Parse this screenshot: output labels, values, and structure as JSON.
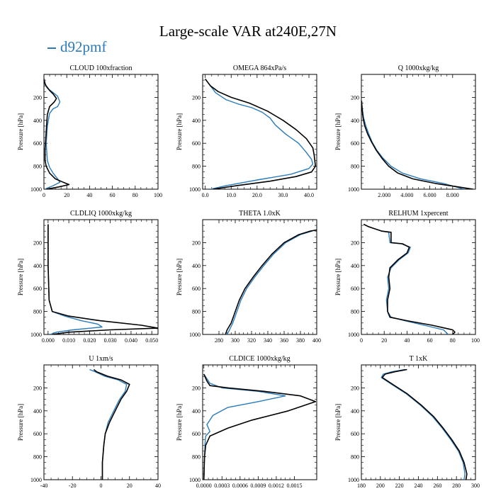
{
  "figure": {
    "title": "Large-scale VAR at240E,27N",
    "legend_label": "d92pmf",
    "legend_color": "#2b7bba",
    "obs_color": "#000000"
  },
  "chart_data": [
    {
      "type": "line",
      "title": "CLOUD  100xfraction",
      "ylabel": "Pressure [hPa]",
      "xlim": [
        0,
        100
      ],
      "ylim": [
        1000,
        0
      ],
      "y_inverted": true,
      "xticks": [
        0,
        20,
        40,
        60,
        80,
        100
      ],
      "xticklabels": [
        "0",
        "20",
        "40",
        "60",
        "80",
        "100"
      ],
      "yticks": [
        200,
        400,
        600,
        800,
        1000
      ],
      "yticklabels": [
        "200",
        "400",
        "600",
        "800",
        "1000"
      ],
      "series": [
        {
          "color": "#000000",
          "x": [
            0,
            1,
            2,
            5,
            8,
            11,
            9,
            5,
            3,
            2,
            1,
            1,
            2,
            5,
            10,
            17,
            22,
            13,
            5,
            2
          ],
          "y": [
            40,
            80,
            100,
            140,
            170,
            210,
            240,
            280,
            350,
            500,
            650,
            750,
            800,
            860,
            910,
            940,
            960,
            980,
            995,
            1000
          ]
        },
        {
          "color": "#2b7bba",
          "x": [
            0,
            1,
            3,
            7,
            12,
            14,
            12,
            8,
            5,
            3,
            2,
            3,
            5,
            8,
            12,
            14,
            8,
            3,
            1
          ],
          "y": [
            40,
            90,
            120,
            150,
            190,
            240,
            280,
            300,
            340,
            450,
            600,
            750,
            810,
            860,
            910,
            940,
            970,
            990,
            1000
          ]
        }
      ]
    },
    {
      "type": "line",
      "title": "OMEGA  864xPa/s",
      "ylabel": "Pressure [hPa]",
      "xlim": [
        -1,
        43
      ],
      "ylim": [
        1000,
        0
      ],
      "y_inverted": true,
      "xticks": [
        0,
        10,
        20,
        30,
        40
      ],
      "xticklabels": [
        "0.0",
        "10.0",
        "20.0",
        "30.0",
        "40.0"
      ],
      "yticks": [
        200,
        400,
        600,
        800,
        1000
      ],
      "yticklabels": [
        "200",
        "400",
        "600",
        "800",
        "1000"
      ],
      "series": [
        {
          "color": "#000000",
          "x": [
            0,
            2,
            5,
            10,
            17,
            24,
            30,
            35,
            39,
            41.5,
            42,
            42.5,
            41,
            35,
            25,
            12,
            3
          ],
          "y": [
            40,
            100,
            150,
            200,
            250,
            320,
            400,
            480,
            560,
            640,
            700,
            800,
            850,
            890,
            930,
            970,
            1000
          ]
        },
        {
          "color": "#2b7bba",
          "x": [
            0,
            2,
            4,
            8,
            13,
            18,
            22,
            25,
            27,
            31,
            36,
            39,
            41,
            41.5,
            40,
            33,
            20,
            8,
            2
          ],
          "y": [
            40,
            100,
            160,
            220,
            260,
            290,
            330,
            380,
            440,
            520,
            600,
            680,
            740,
            780,
            820,
            870,
            920,
            970,
            1000
          ]
        }
      ]
    },
    {
      "type": "line",
      "title": "Q  1000xkg/kg",
      "ylabel": "Pressure [hPa]",
      "xlim": [
        0,
        10000
      ],
      "ylim": [
        1000,
        0
      ],
      "y_inverted": true,
      "xticks": [
        2000,
        4000,
        6000,
        8000
      ],
      "xticklabels": [
        "2.000",
        "4.000",
        "6.000",
        "8.000"
      ],
      "yticks": [
        200,
        400,
        600,
        800,
        1000
      ],
      "yticklabels": [
        "200",
        "400",
        "600",
        "800",
        "1000"
      ],
      "series": [
        {
          "color": "#000000",
          "x": [
            20,
            60,
            150,
            300,
            550,
            900,
            1300,
            1800,
            2400,
            3200,
            4500,
            6500,
            8500,
            9800
          ],
          "y": [
            230,
            300,
            380,
            450,
            520,
            590,
            660,
            730,
            800,
            860,
            910,
            950,
            980,
            1000
          ]
        },
        {
          "color": "#2b7bba",
          "x": [
            20,
            80,
            200,
            400,
            650,
            950,
            1350,
            1900,
            2600,
            3600,
            5200,
            7200,
            9000
          ],
          "y": [
            230,
            300,
            380,
            450,
            520,
            590,
            660,
            730,
            800,
            860,
            910,
            950,
            1000
          ]
        }
      ]
    },
    {
      "type": "line",
      "title": "CLDLIQ  1000xkg/kg",
      "ylabel": "Pressure [hPa]",
      "xlim": [
        -0.002,
        0.053
      ],
      "ylim": [
        1000,
        0
      ],
      "y_inverted": true,
      "xticks": [
        0,
        0.01,
        0.02,
        0.03,
        0.04,
        0.05
      ],
      "xticklabels": [
        "0.000",
        "0.010",
        "0.020",
        "0.030",
        "0.040",
        "0.050"
      ],
      "yticks": [
        200,
        400,
        600,
        800,
        1000
      ],
      "yticklabels": [
        "200",
        "400",
        "600",
        "800",
        "1000"
      ],
      "series": [
        {
          "color": "#000000",
          "x": [
            0,
            0,
            0.0005,
            0.002,
            0.01,
            0.025,
            0.045,
            0.053,
            0.03,
            0.01,
            0.002
          ],
          "y": [
            40,
            400,
            700,
            800,
            840,
            880,
            920,
            945,
            960,
            980,
            1000
          ]
        },
        {
          "color": "#2b7bba",
          "x": [
            0,
            0,
            0.0005,
            0.002,
            0.008,
            0.016,
            0.024,
            0.026,
            0.012,
            0.004,
            0.001
          ],
          "y": [
            40,
            400,
            700,
            800,
            840,
            880,
            910,
            935,
            960,
            980,
            1000
          ]
        }
      ]
    },
    {
      "type": "line",
      "title": "THETA  1.0xK",
      "ylabel": "Pressure [hPa]",
      "xlim": [
        260,
        400
      ],
      "ylim": [
        1000,
        0
      ],
      "y_inverted": true,
      "xticks": [
        280,
        300,
        320,
        340,
        360,
        380,
        400
      ],
      "xticklabels": [
        "280",
        "300",
        "320",
        "340",
        "360",
        "380",
        "400"
      ],
      "yticks": [
        200,
        400,
        600,
        800,
        1000
      ],
      "yticklabels": [
        "200",
        "400",
        "600",
        "800",
        "1000"
      ],
      "series": [
        {
          "color": "#000000",
          "x": [
            288,
            290,
            295,
            300,
            305,
            312,
            322,
            333,
            345,
            360,
            378,
            392,
            400
          ],
          "y": [
            1000,
            960,
            900,
            800,
            700,
            600,
            500,
            400,
            300,
            200,
            130,
            100,
            90
          ]
        },
        {
          "color": "#2b7bba",
          "x": [
            290,
            293,
            297,
            302,
            307,
            314,
            324,
            335,
            347,
            362,
            380,
            394
          ],
          "y": [
            1000,
            960,
            900,
            800,
            700,
            600,
            500,
            400,
            300,
            200,
            130,
            100
          ]
        }
      ]
    },
    {
      "type": "line",
      "title": "RELHUM  1xpercent",
      "ylabel": "Pressure [hPa]",
      "xlim": [
        0,
        100
      ],
      "ylim": [
        1000,
        0
      ],
      "y_inverted": true,
      "xticks": [
        0,
        20,
        40,
        60,
        80,
        100
      ],
      "xticklabels": [
        "0",
        "20",
        "40",
        "60",
        "80",
        "100"
      ],
      "yticks": [
        200,
        400,
        600,
        800,
        1000
      ],
      "yticklabels": [
        "200",
        "400",
        "600",
        "800",
        "1000"
      ],
      "series": [
        {
          "color": "#000000",
          "x": [
            2,
            6,
            12,
            18,
            26,
            26,
            36,
            42,
            40,
            32,
            25,
            24,
            25,
            23,
            23,
            25,
            40,
            62,
            80,
            82,
            80
          ],
          "y": [
            40,
            60,
            80,
            100,
            110,
            200,
            210,
            240,
            290,
            350,
            420,
            500,
            600,
            700,
            800,
            850,
            880,
            920,
            960,
            980,
            1000
          ]
        },
        {
          "color": "#2b7bba",
          "x": [
            2,
            6,
            12,
            18,
            24,
            25,
            35,
            43,
            41,
            33,
            26,
            23,
            24,
            22,
            23,
            26,
            38,
            55,
            72,
            76
          ],
          "y": [
            40,
            60,
            80,
            100,
            110,
            200,
            210,
            240,
            290,
            350,
            420,
            500,
            600,
            700,
            800,
            850,
            880,
            920,
            960,
            1000
          ]
        }
      ]
    },
    {
      "type": "line",
      "title": "U  1xm/s",
      "ylabel": "Pressure [hPa]",
      "xlim": [
        -40,
        40
      ],
      "ylim": [
        1000,
        0
      ],
      "y_inverted": true,
      "xticks": [
        -40,
        -20,
        0,
        20,
        40
      ],
      "xticklabels": [
        "-40",
        "-20",
        "0",
        "20",
        "40"
      ],
      "yticks": [
        200,
        400,
        600,
        800,
        1000
      ],
      "yticklabels": [
        "200",
        "400",
        "600",
        "800",
        "1000"
      ],
      "series": [
        {
          "color": "#000000",
          "x": [
            -5,
            -3,
            5,
            14,
            20,
            18,
            14,
            10,
            6,
            3,
            2,
            1,
            1
          ],
          "y": [
            40,
            60,
            100,
            130,
            170,
            230,
            300,
            400,
            500,
            600,
            700,
            850,
            1000
          ]
        },
        {
          "color": "#2b7bba",
          "x": [
            -8,
            -4,
            3,
            12,
            18,
            17,
            13,
            9,
            5,
            3,
            2,
            1,
            1
          ],
          "y": [
            40,
            60,
            100,
            130,
            170,
            230,
            300,
            400,
            500,
            600,
            700,
            850,
            1000
          ]
        }
      ]
    },
    {
      "type": "line",
      "title": "CLDICE  1000xkg/kg",
      "ylabel": "Pressure [hPa]",
      "xlim": [
        -2e-05,
        0.00187
      ],
      "ylim": [
        1000,
        0
      ],
      "y_inverted": true,
      "xticks": [
        0,
        0.0003,
        0.0006,
        0.0009,
        0.0012,
        0.0015
      ],
      "xticklabels": [
        "0.0000",
        "0.0003",
        "0.0006",
        "0.0009",
        "0.0012",
        "0.0015"
      ],
      "yticks": [
        200,
        400,
        600,
        800,
        1000
      ],
      "yticklabels": [
        "200",
        "400",
        "600",
        "800",
        "1000"
      ],
      "series": [
        {
          "color": "#000000",
          "x": [
            0,
            5e-05,
            0.0001,
            0.0004,
            0.001,
            0.0016,
            0.00185,
            0.0014,
            0.0008,
            0.0004,
            0.0001,
            3e-05,
            1e-05,
            0
          ],
          "y": [
            80,
            140,
            180,
            200,
            230,
            270,
            320,
            400,
            480,
            550,
            620,
            700,
            800,
            1000
          ]
        },
        {
          "color": "#2b7bba",
          "x": [
            0,
            5e-05,
            0.0001,
            0.0003,
            0.0009,
            0.00135,
            0.0009,
            0.0004,
            0.00015,
            5e-05,
            0.0001,
            3e-05,
            2e-05,
            0
          ],
          "y": [
            80,
            120,
            160,
            200,
            230,
            270,
            320,
            370,
            440,
            520,
            580,
            620,
            680,
            1000
          ]
        }
      ]
    },
    {
      "type": "line",
      "title": "T  1xK",
      "ylabel": "Pressure [hPa]",
      "xlim": [
        180,
        300
      ],
      "ylim": [
        1000,
        0
      ],
      "y_inverted": true,
      "xticks": [
        180,
        200,
        220,
        240,
        260,
        280,
        300
      ],
      "xticklabels": [
        "180",
        "200",
        "220",
        "240",
        "260",
        "280",
        "300"
      ],
      "yticks": [
        200,
        400,
        600,
        800,
        1000
      ],
      "yticklabels": [
        "200",
        "400",
        "600",
        "800",
        "1000"
      ],
      "series": [
        {
          "color": "#000000",
          "x": [
            228,
            215,
            205,
            202,
            213,
            228,
            243,
            256,
            266,
            275,
            283,
            288,
            291,
            290
          ],
          "y": [
            40,
            60,
            80,
            110,
            170,
            250,
            350,
            450,
            550,
            650,
            750,
            850,
            950,
            1000
          ]
        },
        {
          "color": "#2b7bba",
          "x": [
            226,
            212,
            203,
            201,
            212,
            227,
            242,
            255,
            265,
            274,
            282,
            287,
            289,
            288
          ],
          "y": [
            40,
            60,
            80,
            110,
            170,
            250,
            350,
            450,
            550,
            650,
            750,
            850,
            950,
            1000
          ]
        }
      ]
    }
  ]
}
